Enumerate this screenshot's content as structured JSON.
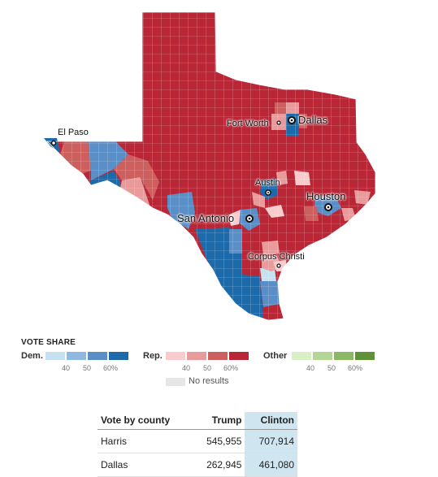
{
  "colors": {
    "dem": [
      "#c6e1f2",
      "#8fb9e0",
      "#5a8ec6",
      "#1c6aa9"
    ],
    "rep": [
      "#f8cccc",
      "#e99b9b",
      "#cd5f5f",
      "#b92636"
    ],
    "other": [
      "#d9efc4",
      "#b3d695",
      "#8cb865",
      "#5f9237"
    ],
    "no_results": "#e6e6e6",
    "dem_base": "#1c6aa9",
    "rep_base": "#b92636"
  },
  "map": {
    "cities": [
      {
        "name": "El Paso"
      },
      {
        "name": "Fort Worth"
      },
      {
        "name": "Dallas"
      },
      {
        "name": "Austin"
      },
      {
        "name": "Houston"
      },
      {
        "name": "San Antonio"
      },
      {
        "name": "Corpus Christi"
      }
    ]
  },
  "legend": {
    "title": "VOTE SHARE",
    "groups": [
      {
        "label": "Dem.",
        "ticks": [
          "40",
          "50",
          "60%"
        ]
      },
      {
        "label": "Rep.",
        "ticks": [
          "40",
          "50",
          "60%"
        ]
      },
      {
        "label": "Other",
        "ticks": [
          "40",
          "50",
          "60%"
        ]
      }
    ],
    "no_results_label": "No results"
  },
  "table": {
    "headers": [
      "Vote by county",
      "Trump",
      "Clinton"
    ],
    "rows": [
      {
        "county": "Harris",
        "trump": "545,955",
        "clinton": "707,914"
      },
      {
        "county": "Dallas",
        "trump": "262,945",
        "clinton": "461,080"
      }
    ]
  }
}
